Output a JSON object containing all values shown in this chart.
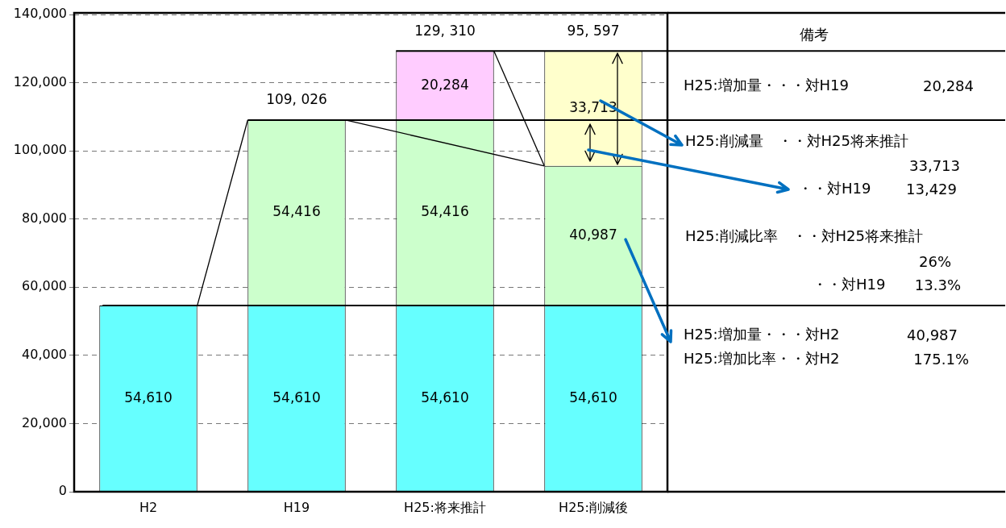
{
  "chart_data": {
    "type": "bar",
    "stacked": true,
    "categories": [
      "H2",
      "H19",
      "H25:将来推計",
      "H25:削減後"
    ],
    "series": [
      {
        "color": "#66ffff",
        "values": [
          54610,
          54610,
          54610,
          54610
        ],
        "value_labels": [
          "54,610",
          "54,610",
          "54,610",
          "54,610"
        ]
      },
      {
        "color": "#ccffcc",
        "values": [
          null,
          54416,
          54416,
          40987
        ],
        "value_labels": [
          null,
          "54,416",
          "54,416",
          "40,987"
        ]
      },
      {
        "color": "#ffccff",
        "values": [
          null,
          null,
          20284,
          null
        ],
        "value_labels": [
          null,
          null,
          "20,284",
          null
        ]
      },
      {
        "color": "#ffffcc",
        "values": [
          null,
          null,
          null,
          33713
        ],
        "value_labels": [
          null,
          null,
          null,
          "33,713"
        ]
      }
    ],
    "totals": [
      null,
      "109, 026",
      "129, 310",
      "95, 597"
    ],
    "ylim": [
      0,
      140000
    ],
    "yticks": [
      0,
      {
        "value": 20000,
        "label": "20,000"
      },
      {
        "value": 40000,
        "label": "40,000"
      },
      {
        "value": 60000,
        "label": "60,000"
      },
      {
        "value": 80000,
        "label": "80,000"
      },
      {
        "value": 100000,
        "label": "100,000"
      },
      {
        "value": 120000,
        "label": "120,000"
      },
      {
        "value": 140000,
        "label": "140,000"
      }
    ],
    "grid": "y",
    "legend": false,
    "annotations": [
      "備考",
      "H25:増加量・・・対H19",
      "20,284",
      "H25:削減量　・・対H25将来推計",
      "33,713",
      "・・対H19",
      "13,429",
      "H25:削減比率　・・対H25将来推計",
      "26%",
      "・・対H19",
      "13.3%",
      "H25:増加量・・・対H2",
      "40,987",
      "H25:増加比率・・対H2",
      "175.1%"
    ]
  }
}
